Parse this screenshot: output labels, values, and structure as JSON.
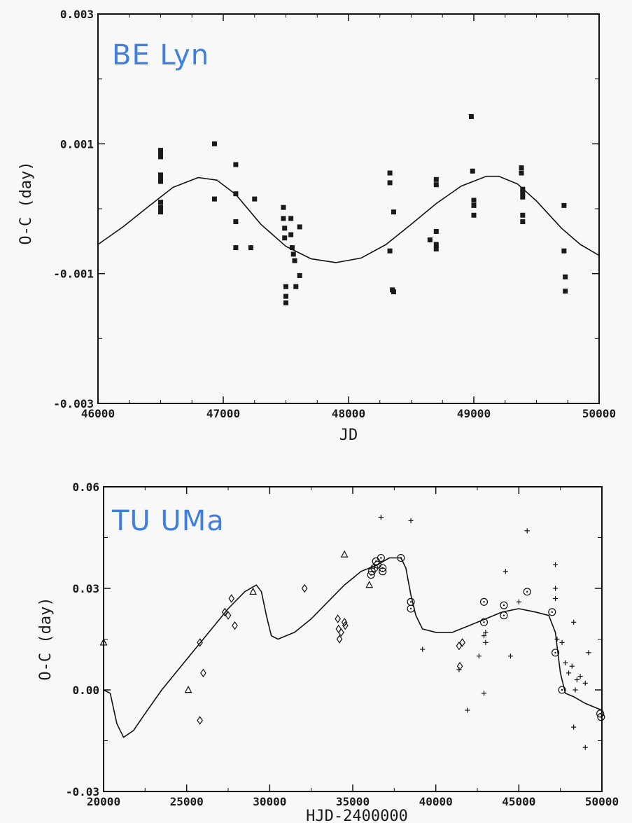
{
  "chart_data": [
    {
      "type": "scatter",
      "title": "BE Lyn",
      "xlabel": "JD",
      "ylabel": "O-C (day)",
      "xlim": [
        46000,
        50000
      ],
      "ylim": [
        -0.003,
        0.003
      ],
      "xticks": [
        "46000",
        "47000",
        "48000",
        "49000",
        "50000"
      ],
      "yticks": [
        "0.003",
        "0.001",
        "-0.001",
        "-0.003"
      ],
      "series": [
        {
          "marker": "square",
          "points": [
            [
              46500,
              0.0009
            ],
            [
              46500,
              0.00085
            ],
            [
              46500,
              0.0008
            ],
            [
              46500,
              0.00052
            ],
            [
              46500,
              0.00047
            ],
            [
              46500,
              0.00042
            ],
            [
              46500,
              0.0001
            ],
            [
              46500,
              2e-05
            ],
            [
              46500,
              -5e-05
            ],
            [
              46930,
              0.001
            ],
            [
              46930,
              0.00015
            ],
            [
              47100,
              0.00068
            ],
            [
              47100,
              0.00023
            ],
            [
              47100,
              -0.0002
            ],
            [
              47100,
              -0.0006
            ],
            [
              47220,
              -0.0006
            ],
            [
              47250,
              0.00015
            ],
            [
              47480,
              2e-05
            ],
            [
              47480,
              -0.00015
            ],
            [
              47490,
              -0.0003
            ],
            [
              47490,
              -0.00045
            ],
            [
              47500,
              -0.0012
            ],
            [
              47500,
              -0.00135
            ],
            [
              47500,
              -0.00145
            ],
            [
              47540,
              -0.00015
            ],
            [
              47540,
              -0.0004
            ],
            [
              47550,
              -0.0006
            ],
            [
              47560,
              -0.0007
            ],
            [
              47570,
              -0.0008
            ],
            [
              47580,
              -0.0012
            ],
            [
              47610,
              -0.00028
            ],
            [
              47610,
              -0.00103
            ],
            [
              48330,
              0.00055
            ],
            [
              48330,
              0.0004
            ],
            [
              48330,
              -0.00065
            ],
            [
              48350,
              -0.00125
            ],
            [
              48360,
              -0.00128
            ],
            [
              48360,
              -5e-05
            ],
            [
              48650,
              -0.00048
            ],
            [
              48700,
              0.00045
            ],
            [
              48700,
              0.00037
            ],
            [
              48700,
              -0.00035
            ],
            [
              48700,
              -0.00055
            ],
            [
              48700,
              -0.00062
            ],
            [
              48980,
              0.00142
            ],
            [
              48990,
              0.00058
            ],
            [
              49000,
              0.00013
            ],
            [
              49000,
              5e-05
            ],
            [
              49000,
              -0.0001
            ],
            [
              49380,
              0.00063
            ],
            [
              49380,
              0.00055
            ],
            [
              49390,
              0.0003
            ],
            [
              49390,
              0.00025
            ],
            [
              49390,
              0.00018
            ],
            [
              49390,
              -0.0001
            ],
            [
              49390,
              -0.0002
            ],
            [
              49720,
              5e-05
            ],
            [
              49720,
              -0.00065
            ],
            [
              49730,
              -0.00105
            ],
            [
              49730,
              -0.00127
            ]
          ]
        }
      ],
      "fit_curve": [
        [
          46000,
          -0.00055
        ],
        [
          46200,
          -0.00028
        ],
        [
          46400,
          3e-05
        ],
        [
          46600,
          0.00033
        ],
        [
          46800,
          0.00048
        ],
        [
          46950,
          0.00044
        ],
        [
          47100,
          0.00022
        ],
        [
          47300,
          -0.00024
        ],
        [
          47500,
          -0.00058
        ],
        [
          47700,
          -0.00077
        ],
        [
          47900,
          -0.00083
        ],
        [
          48100,
          -0.00076
        ],
        [
          48300,
          -0.00055
        ],
        [
          48500,
          -0.00024
        ],
        [
          48700,
          8e-05
        ],
        [
          48900,
          0.00035
        ],
        [
          49100,
          0.0005
        ],
        [
          49200,
          0.0005
        ],
        [
          49350,
          0.00038
        ],
        [
          49500,
          0.00012
        ],
        [
          49700,
          -0.0003
        ],
        [
          49850,
          -0.00055
        ],
        [
          50000,
          -0.00072
        ]
      ]
    },
    {
      "type": "scatter",
      "title": "TU UMa",
      "xlabel": "HJD-2400000",
      "ylabel": "O-C (day)",
      "xlim": [
        20000,
        50000
      ],
      "ylim": [
        -0.03,
        0.06
      ],
      "xticks": [
        "20000",
        "25000",
        "30000",
        "35000",
        "40000",
        "45000",
        "50000"
      ],
      "yticks": [
        "0.06",
        "0.03",
        "0.00",
        "-0.03"
      ],
      "series": [
        {
          "marker": "triangle",
          "points": [
            [
              20000,
              0.014
            ],
            [
              25100,
              0.0
            ],
            [
              29000,
              0.029
            ],
            [
              34500,
              0.04
            ],
            [
              36000,
              0.031
            ]
          ]
        },
        {
          "marker": "diamond",
          "points": [
            [
              25800,
              -0.009
            ],
            [
              25800,
              0.014
            ],
            [
              26000,
              0.005
            ],
            [
              27300,
              0.023
            ],
            [
              27500,
              0.022
            ],
            [
              27700,
              0.027
            ],
            [
              27900,
              0.019
            ],
            [
              32100,
              0.03
            ],
            [
              34100,
              0.021
            ],
            [
              34150,
              0.018
            ],
            [
              34200,
              0.015
            ],
            [
              34300,
              0.017
            ],
            [
              34500,
              0.02
            ],
            [
              34550,
              0.019
            ],
            [
              41400,
              0.013
            ],
            [
              41450,
              0.007
            ],
            [
              41600,
              0.014
            ]
          ]
        },
        {
          "marker": "circle-dot",
          "points": [
            [
              36100,
              0.034
            ],
            [
              36150,
              0.035
            ],
            [
              36300,
              0.036
            ],
            [
              36400,
              0.038
            ],
            [
              36500,
              0.037
            ],
            [
              36700,
              0.039
            ],
            [
              36800,
              0.036
            ],
            [
              36800,
              0.035
            ],
            [
              37900,
              0.039
            ],
            [
              38500,
              0.026
            ],
            [
              38500,
              0.024
            ],
            [
              42900,
              0.026
            ],
            [
              42900,
              0.02
            ],
            [
              44100,
              0.025
            ],
            [
              44100,
              0.022
            ],
            [
              45500,
              0.029
            ],
            [
              47000,
              0.023
            ],
            [
              47200,
              0.011
            ],
            [
              47600,
              0.0
            ],
            [
              49900,
              -0.007
            ],
            [
              49950,
              -0.008
            ]
          ]
        },
        {
          "marker": "plus",
          "points": [
            [
              36700,
              0.051
            ],
            [
              38500,
              0.05
            ],
            [
              39200,
              0.012
            ],
            [
              41400,
              0.006
            ],
            [
              41900,
              -0.006
            ],
            [
              42600,
              0.01
            ],
            [
              42900,
              0.016
            ],
            [
              42900,
              -0.001
            ],
            [
              43000,
              0.014
            ],
            [
              43000,
              0.017
            ],
            [
              44200,
              0.035
            ],
            [
              44500,
              0.01
            ],
            [
              45000,
              0.026
            ],
            [
              45500,
              0.047
            ],
            [
              47200,
              0.037
            ],
            [
              47200,
              0.03
            ],
            [
              47200,
              0.027
            ],
            [
              47300,
              0.015
            ],
            [
              47600,
              0.014
            ],
            [
              47800,
              0.008
            ],
            [
              48000,
              0.005
            ],
            [
              48200,
              0.007
            ],
            [
              48300,
              0.02
            ],
            [
              48400,
              0.0
            ],
            [
              48500,
              0.003
            ],
            [
              48700,
              0.004
            ],
            [
              49000,
              0.002
            ],
            [
              49200,
              0.011
            ],
            [
              49000,
              -0.017
            ],
            [
              48300,
              -0.011
            ]
          ]
        }
      ],
      "fit_curve": [
        [
          20000,
          0.0
        ],
        [
          20400,
          -0.001
        ],
        [
          20800,
          -0.01
        ],
        [
          21200,
          -0.014
        ],
        [
          21800,
          -0.012
        ],
        [
          22500,
          -0.007
        ],
        [
          23500,
          0.0
        ],
        [
          24500,
          0.006
        ],
        [
          25500,
          0.012
        ],
        [
          26500,
          0.018
        ],
        [
          27500,
          0.024
        ],
        [
          28500,
          0.029
        ],
        [
          29200,
          0.031
        ],
        [
          29500,
          0.029
        ],
        [
          29800,
          0.022
        ],
        [
          30100,
          0.016
        ],
        [
          30500,
          0.015
        ],
        [
          31500,
          0.017
        ],
        [
          32500,
          0.021
        ],
        [
          33500,
          0.026
        ],
        [
          34500,
          0.031
        ],
        [
          35500,
          0.035
        ],
        [
          36500,
          0.037
        ],
        [
          37200,
          0.039
        ],
        [
          37900,
          0.039
        ],
        [
          38200,
          0.036
        ],
        [
          38500,
          0.028
        ],
        [
          38800,
          0.022
        ],
        [
          39200,
          0.018
        ],
        [
          40000,
          0.017
        ],
        [
          41000,
          0.017
        ],
        [
          42000,
          0.019
        ],
        [
          43000,
          0.021
        ],
        [
          44000,
          0.023
        ],
        [
          45000,
          0.024
        ],
        [
          46000,
          0.023
        ],
        [
          46800,
          0.022
        ],
        [
          47200,
          0.017
        ],
        [
          47500,
          0.005
        ],
        [
          47800,
          -0.001
        ],
        [
          48300,
          -0.002
        ],
        [
          49000,
          -0.004
        ],
        [
          50000,
          -0.006
        ]
      ]
    }
  ]
}
